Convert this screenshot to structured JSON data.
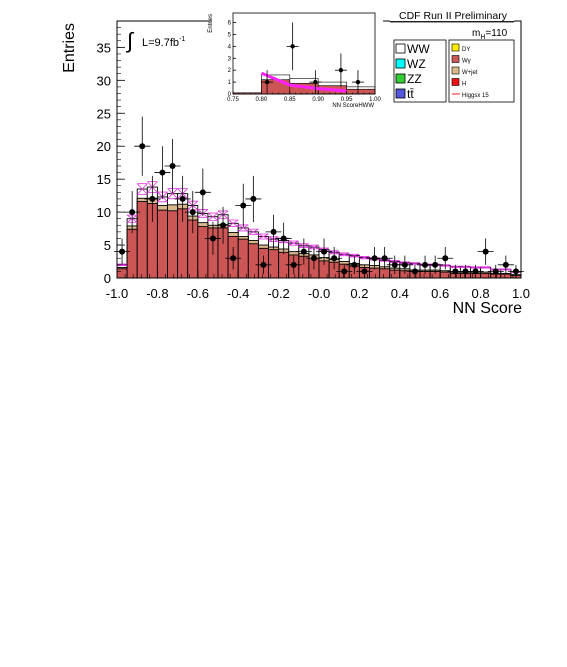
{
  "chart_data": [
    {
      "type": "bar",
      "title": "CDF Run II Preliminary",
      "xlabel": "NN Score",
      "ylabel": "Entries",
      "annotations": {
        "luminosity_integral": "∫",
        "luminosity": "L=9.7fb",
        "luminosity_exp": "-1",
        "mass_prefix": "m",
        "mass_sub": "H",
        "mass_value": "=110"
      },
      "xlim": [
        -1.0,
        1.0
      ],
      "ylim": [
        0,
        39
      ],
      "x_ticks": [
        "-1.0",
        "-0.8",
        "-0.6",
        "-0.4",
        "-0.2",
        "-0.0",
        "0.2",
        "0.4",
        "0.6",
        "0.8",
        "1.0"
      ],
      "y_ticks": [
        "0",
        "5",
        "10",
        "15",
        "20",
        "25",
        "30",
        "35"
      ],
      "bin_width": 0.05,
      "bin_left_edges": [
        -1.0,
        -0.95,
        -0.9,
        -0.85,
        -0.8,
        -0.75,
        -0.7,
        -0.65,
        -0.6,
        -0.55,
        -0.5,
        -0.45,
        -0.4,
        -0.35,
        -0.3,
        -0.25,
        -0.2,
        -0.15,
        -0.1,
        -0.05,
        0.0,
        0.05,
        0.1,
        0.15,
        0.2,
        0.25,
        0.3,
        0.35,
        0.4,
        0.45,
        0.5,
        0.55,
        0.6,
        0.65,
        0.7,
        0.75,
        0.8,
        0.85,
        0.9,
        0.95
      ],
      "stack_layers": [
        {
          "name": "WW",
          "color": "#ffffff",
          "values": [
            2.0,
            9.0,
            13.5,
            13.8,
            12.3,
            12.8,
            12.8,
            11.0,
            9.8,
            9.3,
            9.6,
            8.3,
            7.6,
            7.0,
            6.3,
            5.9,
            5.7,
            5.3,
            4.9,
            4.7,
            4.3,
            3.9,
            3.6,
            3.4,
            3.1,
            2.9,
            2.7,
            2.5,
            2.3,
            2.2,
            2.0,
            2.0,
            1.9,
            1.7,
            1.7,
            1.6,
            1.6,
            1.3,
            1.3,
            0.9
          ]
        },
        {
          "name": "W+jet",
          "color": "#dab88d",
          "values": [
            1.6,
            7.9,
            12.1,
            12.1,
            11.0,
            11.1,
            11.2,
            9.4,
            8.4,
            8.0,
            8.1,
            6.9,
            6.3,
            5.7,
            5.0,
            4.7,
            4.4,
            4.0,
            3.7,
            3.5,
            3.1,
            2.8,
            2.5,
            2.2,
            2.0,
            1.9,
            1.7,
            1.5,
            1.4,
            1.2,
            1.2,
            1.2,
            1.1,
            0.9,
            0.9,
            0.9,
            0.9,
            0.7,
            0.7,
            0.5
          ]
        },
        {
          "name": "Wγ",
          "color": "#cc5555",
          "values": [
            1.4,
            7.4,
            11.6,
            11.3,
            10.3,
            10.2,
            10.5,
            8.8,
            7.8,
            7.6,
            7.6,
            6.3,
            5.9,
            5.2,
            4.5,
            4.3,
            3.9,
            3.5,
            3.3,
            3.0,
            2.6,
            2.4,
            2.1,
            1.8,
            1.6,
            1.5,
            1.4,
            1.2,
            1.1,
            1.0,
            1.0,
            1.0,
            0.9,
            0.7,
            0.7,
            0.7,
            0.7,
            0.6,
            0.6,
            0.4
          ]
        }
      ],
      "legend_entries": [
        {
          "label": "WW",
          "color": "#ffffff"
        },
        {
          "label": "WZ",
          "color": "#00ffff"
        },
        {
          "label": "ZZ",
          "color": "#33cc33"
        },
        {
          "label": "tt̄",
          "color": "#5555dd"
        },
        {
          "label": "DY",
          "color": "#ffee00"
        },
        {
          "label": "Wγ",
          "color": "#cc5555"
        },
        {
          "label": "W+jet",
          "color": "#dab88d"
        },
        {
          "label": "H",
          "color": "#ee1111"
        },
        {
          "label": "Higgsx 15",
          "color": "#ff2222"
        }
      ],
      "legend_placement": "top-right",
      "uncertainty_band_color": "#dd33dd",
      "uncertainty_fraction": 0.06,
      "data_points": [
        {
          "x": -0.975,
          "y": 4,
          "err": 2.0
        },
        {
          "x": -0.925,
          "y": 10,
          "err": 3.2
        },
        {
          "x": -0.875,
          "y": 20,
          "err": 4.5
        },
        {
          "x": -0.825,
          "y": 12,
          "err": 3.5
        },
        {
          "x": -0.775,
          "y": 16,
          "err": 4.0
        },
        {
          "x": -0.725,
          "y": 17,
          "err": 4.1
        },
        {
          "x": -0.675,
          "y": 12,
          "err": 3.5
        },
        {
          "x": -0.625,
          "y": 10,
          "err": 3.2
        },
        {
          "x": -0.575,
          "y": 13,
          "err": 3.6
        },
        {
          "x": -0.525,
          "y": 6,
          "err": 2.5
        },
        {
          "x": -0.475,
          "y": 8,
          "err": 2.8
        },
        {
          "x": -0.425,
          "y": 3,
          "err": 1.7
        },
        {
          "x": -0.375,
          "y": 11,
          "err": 3.3
        },
        {
          "x": -0.325,
          "y": 12,
          "err": 3.5
        },
        {
          "x": -0.275,
          "y": 2,
          "err": 1.4
        },
        {
          "x": -0.225,
          "y": 7,
          "err": 2.6
        },
        {
          "x": -0.175,
          "y": 6,
          "err": 2.4
        },
        {
          "x": -0.125,
          "y": 2,
          "err": 1.4
        },
        {
          "x": -0.075,
          "y": 4,
          "err": 2.0
        },
        {
          "x": -0.025,
          "y": 3,
          "err": 1.7
        },
        {
          "x": 0.025,
          "y": 4,
          "err": 2.0
        },
        {
          "x": 0.075,
          "y": 3,
          "err": 1.7
        },
        {
          "x": 0.125,
          "y": 1,
          "err": 1.0
        },
        {
          "x": 0.175,
          "y": 2,
          "err": 1.4
        },
        {
          "x": 0.225,
          "y": 1,
          "err": 1.0
        },
        {
          "x": 0.275,
          "y": 3,
          "err": 1.7
        },
        {
          "x": 0.325,
          "y": 3,
          "err": 1.7
        },
        {
          "x": 0.375,
          "y": 2,
          "err": 1.4
        },
        {
          "x": 0.425,
          "y": 2,
          "err": 1.4
        },
        {
          "x": 0.475,
          "y": 1,
          "err": 1.0
        },
        {
          "x": 0.525,
          "y": 2,
          "err": 1.4
        },
        {
          "x": 0.575,
          "y": 2,
          "err": 1.4
        },
        {
          "x": 0.625,
          "y": 3,
          "err": 1.7
        },
        {
          "x": 0.675,
          "y": 1,
          "err": 1.0
        },
        {
          "x": 0.725,
          "y": 1,
          "err": 1.0
        },
        {
          "x": 0.775,
          "y": 1,
          "err": 1.0
        },
        {
          "x": 0.825,
          "y": 4,
          "err": 2.0
        },
        {
          "x": 0.875,
          "y": 1,
          "err": 1.0
        },
        {
          "x": 0.925,
          "y": 2,
          "err": 1.4
        },
        {
          "x": 0.975,
          "y": 1,
          "err": 1.0
        }
      ]
    },
    {
      "type": "bar",
      "title": "",
      "xlabel": "NN ScoreHWW",
      "ylabel": "Entries",
      "xlim": [
        0.75,
        1.0
      ],
      "ylim": [
        0,
        6.8
      ],
      "x_ticks": [
        "0.75",
        "0.80",
        "0.85",
        "0.90",
        "0.95",
        "1.00"
      ],
      "y_ticks": [
        "0",
        "1",
        "2",
        "3",
        "4",
        "5",
        "6"
      ],
      "bin_left_edges": [
        0.75,
        0.8,
        0.85,
        0.9,
        0.95
      ],
      "bin_width": 0.05,
      "stack_layers": [
        {
          "name": "WW",
          "color": "#ffffff",
          "values": [
            0.1,
            1.6,
            1.3,
            1.0,
            0.6
          ]
        },
        {
          "name": "Wγ",
          "color": "#cc5555",
          "values": [
            0.1,
            1.2,
            0.9,
            0.7,
            0.4
          ]
        }
      ],
      "signal_line": {
        "name": "Higgsx 15",
        "color": "#ff22ff",
        "x": [
          0.8,
          0.85,
          0.9,
          0.95
        ],
        "y": [
          1.75,
          0.75,
          0.45,
          0.25
        ]
      },
      "data_points": [
        {
          "x": 0.81,
          "y": 1,
          "err": 1.0
        },
        {
          "x": 0.855,
          "y": 4,
          "err": 2.0
        },
        {
          "x": 0.895,
          "y": 1,
          "err": 1.0
        },
        {
          "x": 0.94,
          "y": 2,
          "err": 1.4
        },
        {
          "x": 0.97,
          "y": 1,
          "err": 1.0
        }
      ]
    }
  ]
}
